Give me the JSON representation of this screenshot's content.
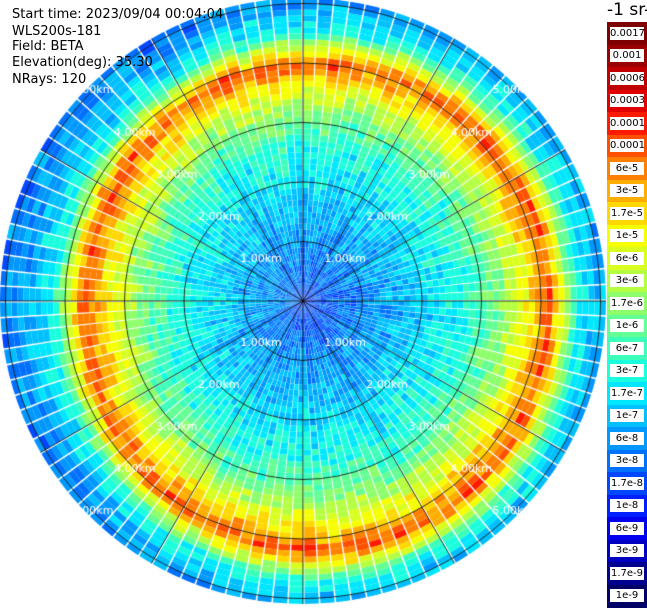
{
  "header": {
    "start_time": "Start time: 2023/09/04 00:04:04",
    "instrument": "WLS200s-181",
    "field": "Field: BETA",
    "elevation": "Elevation(deg): 35.30",
    "nrays": "NRays: 120"
  },
  "colorbar": {
    "title": "-1 sr-1",
    "levels": [
      {
        "label": "0.0017",
        "color": "#7f0000"
      },
      {
        "label": "0.001",
        "color": "#9a0000"
      },
      {
        "label": "0.0006",
        "color": "#c00000"
      },
      {
        "label": "0.0003",
        "color": "#e00000"
      },
      {
        "label": "0.00017",
        "color": "#ff1a00"
      },
      {
        "label": "0.0001",
        "color": "#ff5000"
      },
      {
        "label": "6e-5",
        "color": "#ff8000"
      },
      {
        "label": "3e-5",
        "color": "#ffae00"
      },
      {
        "label": "1.7e-5",
        "color": "#ffd800"
      },
      {
        "label": "1e-5",
        "color": "#f5ff00"
      },
      {
        "label": "6e-6",
        "color": "#d8ff1f"
      },
      {
        "label": "3e-6",
        "color": "#b5ff42"
      },
      {
        "label": "1.7e-6",
        "color": "#8cff6b"
      },
      {
        "label": "1e-6",
        "color": "#63ff94"
      },
      {
        "label": "6e-7",
        "color": "#3dffba"
      },
      {
        "label": "3e-7",
        "color": "#1affdd"
      },
      {
        "label": "1.7e-7",
        "color": "#00e6ff"
      },
      {
        "label": "1e-7",
        "color": "#00c0ff"
      },
      {
        "label": "6e-8",
        "color": "#0098ff"
      },
      {
        "label": "3e-8",
        "color": "#0070ff"
      },
      {
        "label": "1.7e-8",
        "color": "#0048ff"
      },
      {
        "label": "1e-8",
        "color": "#0020ff"
      },
      {
        "label": "6e-9",
        "color": "#0000ee"
      },
      {
        "label": "3e-9",
        "color": "#0000c0"
      },
      {
        "label": "1.7e-9",
        "color": "#00008f"
      },
      {
        "label": "1e-9",
        "color": "#000066"
      }
    ]
  },
  "chart_data": {
    "type": "heatmap",
    "projection": "polar-ppi",
    "field": "BETA",
    "elevation_deg": 35.3,
    "nrays": 120,
    "range_max_km": 5.0,
    "range_rings_km": [
      1.0,
      2.0,
      3.0,
      4.0,
      5.0
    ],
    "ring_labels": [
      "1.00km",
      "2.00km",
      "3.00km",
      "4.00km",
      "5.00km"
    ],
    "spokes_deg": [
      0,
      30,
      60,
      90,
      120,
      150,
      180,
      210,
      240,
      270,
      300,
      330
    ],
    "radial_profile": {
      "range_km": [
        0.1,
        0.5,
        1.0,
        1.5,
        2.0,
        2.5,
        3.0,
        3.3,
        3.6,
        3.8,
        4.0,
        4.2,
        4.5,
        5.0,
        5.5
      ],
      "level_index": [
        20,
        19,
        18,
        17,
        16,
        15,
        13,
        11,
        9,
        7,
        5,
        9,
        15,
        18,
        19
      ]
    },
    "color_scale": "see colorbar.levels (index 0 = 0.0017, index 25 = 1e-9)"
  }
}
